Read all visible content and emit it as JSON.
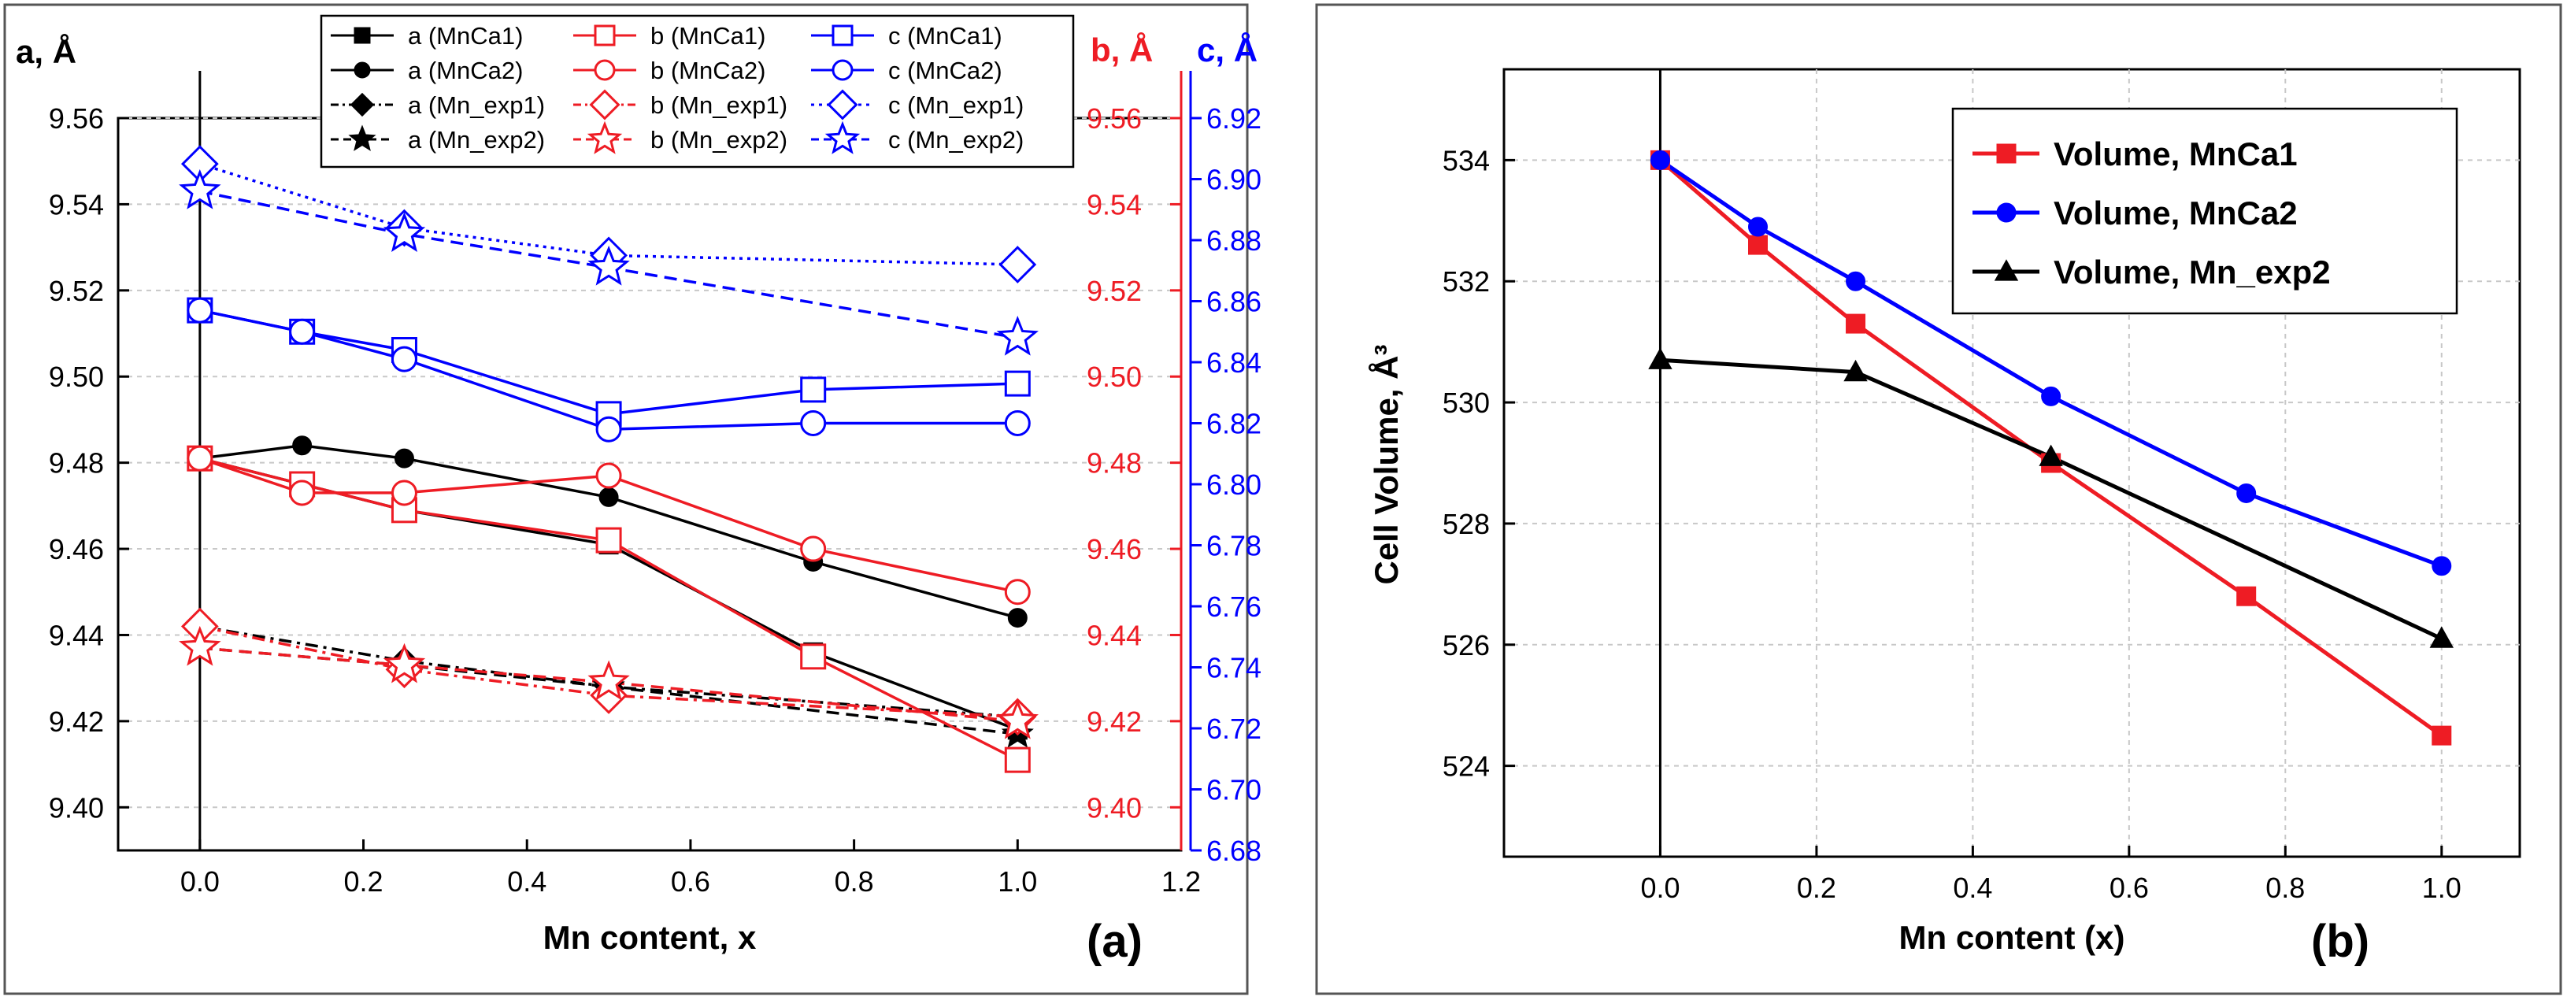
{
  "chart_data": [
    {
      "type": "line",
      "panel_label": "(a)",
      "xlabel": "Mn content, x",
      "xlim": [
        -0.1,
        1.2
      ],
      "xticks": [
        "0.0",
        "0.2",
        "0.4",
        "0.6",
        "0.8",
        "1.0",
        "1.2"
      ],
      "grid": true,
      "legend_position": "top-right",
      "axes": {
        "a": {
          "label": "a, Å",
          "ylim": [
            9.39,
            9.56
          ],
          "ticks": [
            "9.40",
            "9.42",
            "9.44",
            "9.46",
            "9.48",
            "9.50",
            "9.52",
            "9.54",
            "9.56"
          ],
          "color": "#000000",
          "side": "left"
        },
        "b": {
          "label": "b, Å",
          "ylim": [
            9.39,
            9.56
          ],
          "ticks": [
            "9.40",
            "9.42",
            "9.44",
            "9.46",
            "9.48",
            "9.50",
            "9.52",
            "9.54",
            "9.56"
          ],
          "color": "#ee1c24",
          "side": "right"
        },
        "c": {
          "label": "c, Å",
          "ylim": [
            6.68,
            6.92
          ],
          "ticks": [
            "6.68",
            "6.70",
            "6.72",
            "6.74",
            "6.76",
            "6.78",
            "6.80",
            "6.82",
            "6.84",
            "6.86",
            "6.88",
            "6.90",
            "6.92"
          ],
          "color": "#0000ff",
          "side": "right-outer"
        }
      },
      "series": [
        {
          "name": "a (MnCa1)",
          "axis": "a",
          "color": "#000000",
          "marker": "square-filled",
          "dash": "solid",
          "x": [
            0,
            0.125,
            0.25,
            0.5,
            0.75,
            1.0
          ],
          "y": [
            9.481,
            9.475,
            9.469,
            9.461,
            9.436,
            9.418
          ]
        },
        {
          "name": "a (MnCa2)",
          "axis": "a",
          "color": "#000000",
          "marker": "circle-filled",
          "dash": "solid",
          "x": [
            0,
            0.125,
            0.25,
            0.5,
            0.75,
            1.0
          ],
          "y": [
            9.481,
            9.484,
            9.481,
            9.472,
            9.457,
            9.444
          ]
        },
        {
          "name": "a (Mn_exp1)",
          "axis": "a",
          "color": "#000000",
          "marker": "diamond-filled",
          "dash": "dash-dot",
          "x": [
            0,
            0.25,
            0.5,
            1.0
          ],
          "y": [
            9.442,
            9.434,
            9.428,
            9.421
          ]
        },
        {
          "name": "a (Mn_exp2)",
          "axis": "a",
          "color": "#000000",
          "marker": "star-filled",
          "dash": "dash",
          "x": [
            0,
            0.25,
            0.5,
            1.0
          ],
          "y": [
            9.437,
            9.433,
            9.428,
            9.417
          ]
        },
        {
          "name": "b (MnCa1)",
          "axis": "b",
          "color": "#ee1c24",
          "marker": "square-open",
          "dash": "solid",
          "x": [
            0,
            0.125,
            0.25,
            0.5,
            0.75,
            1.0
          ],
          "y": [
            9.481,
            9.475,
            9.469,
            9.462,
            9.435,
            9.411
          ]
        },
        {
          "name": "b (MnCa2)",
          "axis": "b",
          "color": "#ee1c24",
          "marker": "circle-open",
          "dash": "solid",
          "x": [
            0,
            0.125,
            0.25,
            0.5,
            0.75,
            1.0
          ],
          "y": [
            9.481,
            9.473,
            9.473,
            9.477,
            9.46,
            9.45
          ]
        },
        {
          "name": "b (Mn_exp1)",
          "axis": "b",
          "color": "#ee1c24",
          "marker": "diamond-open",
          "dash": "dash-dot",
          "x": [
            0,
            0.25,
            0.5,
            1.0
          ],
          "y": [
            9.442,
            9.432,
            9.426,
            9.421
          ]
        },
        {
          "name": "b (Mn_exp2)",
          "axis": "b",
          "color": "#ee1c24",
          "marker": "star-open",
          "dash": "dash",
          "x": [
            0,
            0.25,
            0.5,
            1.0
          ],
          "y": [
            9.437,
            9.433,
            9.429,
            9.42
          ]
        },
        {
          "name": "c (MnCa1)",
          "axis": "c",
          "color": "#0000ff",
          "marker": "square-open",
          "dash": "solid",
          "x": [
            0,
            0.125,
            0.25,
            0.5,
            0.75,
            1.0
          ],
          "y": [
            6.857,
            6.85,
            6.844,
            6.823,
            6.831,
            6.833
          ]
        },
        {
          "name": "c (MnCa2)",
          "axis": "c",
          "color": "#0000ff",
          "marker": "circle-open",
          "dash": "solid",
          "x": [
            0,
            0.125,
            0.25,
            0.5,
            0.75,
            1.0
          ],
          "y": [
            6.857,
            6.85,
            6.841,
            6.818,
            6.82,
            6.82
          ]
        },
        {
          "name": "c (Mn_exp1)",
          "axis": "c",
          "color": "#0000ff",
          "marker": "diamond-open",
          "dash": "dot",
          "x": [
            0,
            0.25,
            0.5,
            1.0
          ],
          "y": [
            6.905,
            6.884,
            6.875,
            6.872
          ]
        },
        {
          "name": "c (Mn_exp2)",
          "axis": "c",
          "color": "#0000ff",
          "marker": "star-open",
          "dash": "dash",
          "x": [
            0,
            0.25,
            0.5,
            1.0
          ],
          "y": [
            6.896,
            6.882,
            6.871,
            6.848
          ]
        }
      ]
    },
    {
      "type": "line",
      "panel_label": "(b)",
      "xlabel": "Mn content (x)",
      "ylabel": "Cell Volume, Å³",
      "xlim": [
        -0.2,
        1.1
      ],
      "ylim": [
        522.5,
        535.5
      ],
      "xticks": [
        "0.0",
        "0.2",
        "0.4",
        "0.6",
        "0.8",
        "1.0"
      ],
      "yticks": [
        "524",
        "526",
        "528",
        "530",
        "532",
        "534"
      ],
      "grid": true,
      "legend_position": "top-right",
      "series": [
        {
          "name": "Volume, MnCa1",
          "color": "#ee1c24",
          "marker": "square-filled",
          "dash": "solid",
          "x": [
            0,
            0.125,
            0.25,
            0.5,
            0.75,
            1.0
          ],
          "y": [
            534.0,
            532.6,
            531.3,
            529.0,
            526.8,
            524.5
          ]
        },
        {
          "name": "Volume, MnCa2",
          "color": "#0000ff",
          "marker": "circle-filled",
          "dash": "solid",
          "x": [
            0,
            0.125,
            0.25,
            0.5,
            0.75,
            1.0
          ],
          "y": [
            534.0,
            532.9,
            532.0,
            530.1,
            528.5,
            527.3
          ]
        },
        {
          "name": "Volume, Mn_exp2",
          "color": "#000000",
          "marker": "triangle-filled",
          "dash": "solid",
          "x": [
            0,
            0.25,
            0.5,
            1.0
          ],
          "y": [
            530.7,
            530.5,
            529.1,
            526.1
          ]
        }
      ]
    }
  ]
}
